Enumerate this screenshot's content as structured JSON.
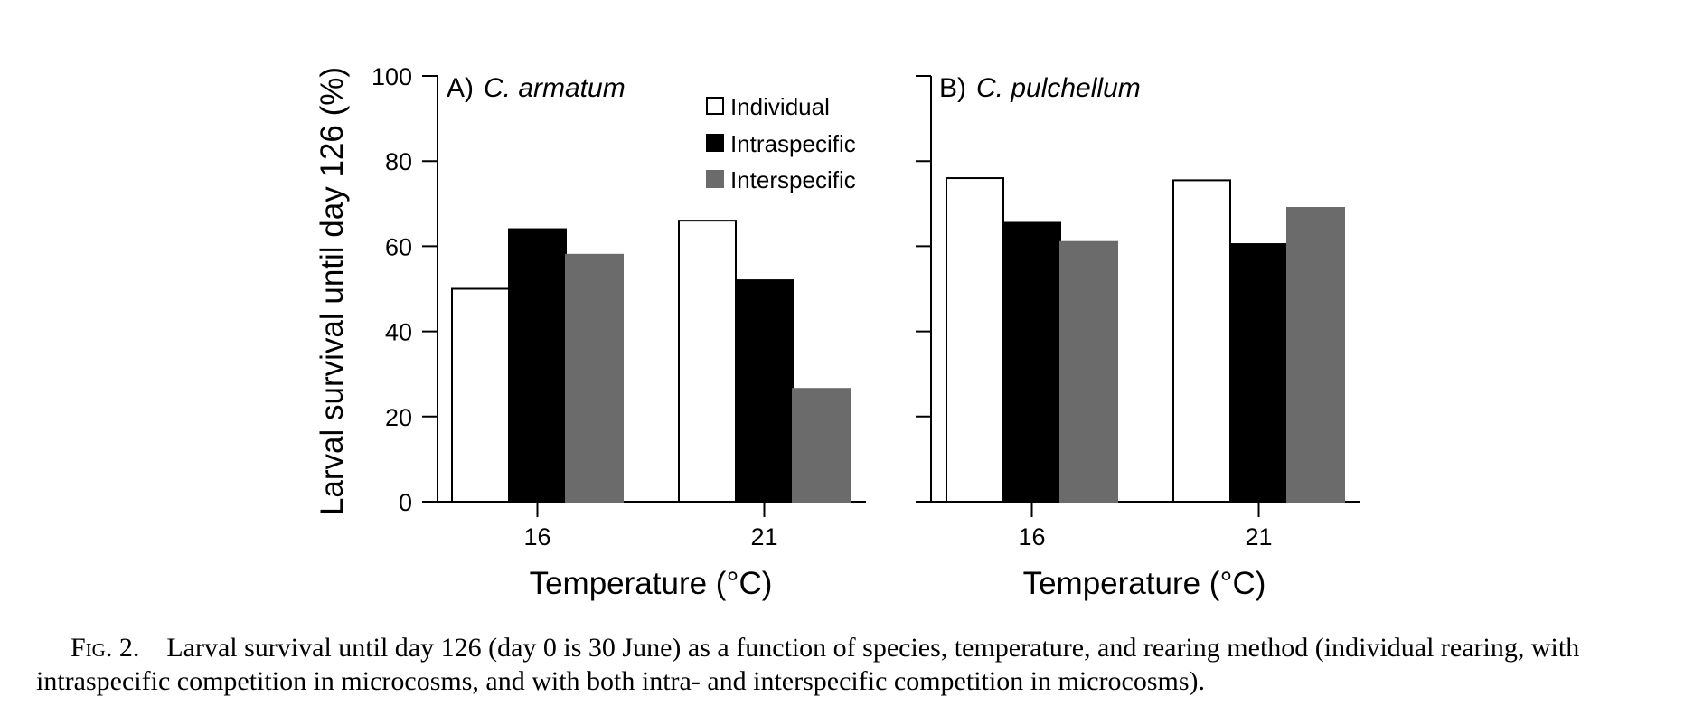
{
  "chart_data": [
    {
      "type": "bar",
      "panel_label": "A)",
      "species": "C. armatum",
      "categories": [
        "16",
        "21"
      ],
      "series": [
        {
          "name": "Individual",
          "values": [
            50,
            66
          ]
        },
        {
          "name": "Intraspecific",
          "values": [
            64,
            52
          ]
        },
        {
          "name": "Interspecific",
          "values": [
            58,
            26.5
          ]
        }
      ],
      "xlabel": "Temperature (°C)",
      "ylabel": "Larval survival until day 126 (%)",
      "ylim": [
        0,
        100
      ],
      "yticks": [
        0,
        20,
        40,
        60,
        80,
        100
      ],
      "legend_position": "top-right",
      "grid": false
    },
    {
      "type": "bar",
      "panel_label": "B)",
      "species": "C. pulchellum",
      "categories": [
        "16",
        "21"
      ],
      "series": [
        {
          "name": "Individual",
          "values": [
            76,
            75.5
          ]
        },
        {
          "name": "Intraspecific",
          "values": [
            65.5,
            60.5
          ]
        },
        {
          "name": "Interspecific",
          "values": [
            61,
            69
          ]
        }
      ],
      "xlabel": "Temperature (°C)",
      "ylim": [
        0,
        100
      ],
      "yticks": [
        0,
        20,
        40,
        60,
        80,
        100
      ],
      "grid": false
    }
  ],
  "legend": {
    "items": [
      {
        "label": "Individual",
        "color": "#ffffff"
      },
      {
        "label": "Intraspecific",
        "color": "#000000"
      },
      {
        "label": "Interspecific",
        "color": "#6b6b6b"
      }
    ]
  },
  "colors": {
    "individual": "#ffffff",
    "intraspecific": "#000000",
    "interspecific": "#6b6b6b"
  },
  "caption": {
    "label": "Fig. 2.",
    "text": "Larval survival until day 126 (day 0 is 30 June) as a function of species, temperature, and rearing method (individual rearing, with intraspecific competition in microcosms, and with both intra- and interspecific competition in microcosms)."
  }
}
